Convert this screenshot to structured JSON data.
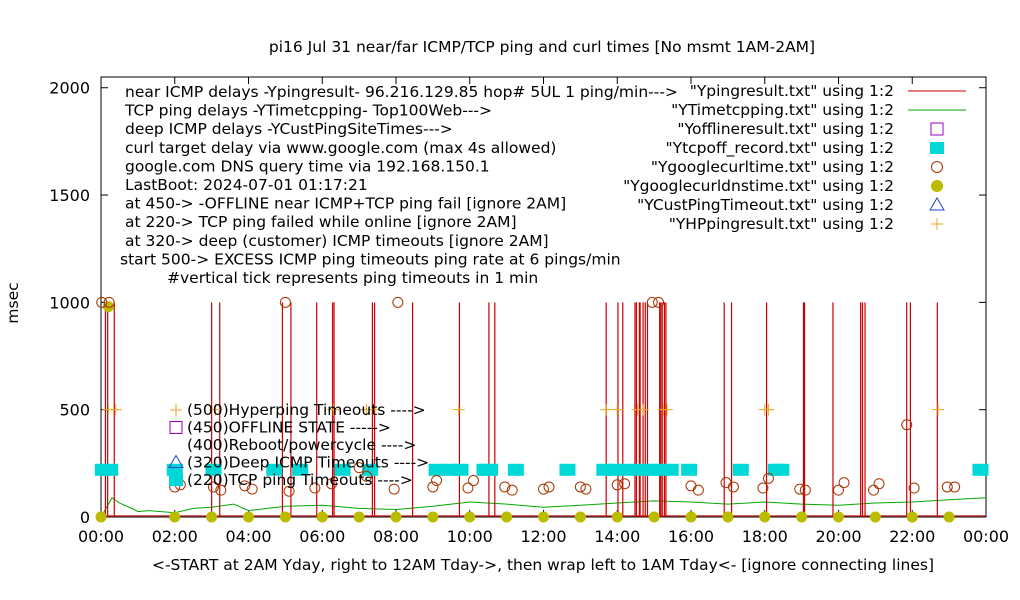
{
  "chart_data": {
    "type": "scatter",
    "title": "pi16 Jul 31  near/far ICMP/TCP ping and curl times [No msmt 1AM-2AM]",
    "ylabel": "msec",
    "xlabel": "<-START at 2AM Yday, right to 12AM Tday->, then wrap left to 1AM Tday<- [ignore connecting lines]",
    "xlim": [
      0,
      24
    ],
    "ylim": [
      0,
      2050
    ],
    "grid": false,
    "legend_position": "top-right",
    "x_ticks": [
      {
        "v": 0,
        "label": "00:00"
      },
      {
        "v": 2,
        "label": "02:00"
      },
      {
        "v": 4,
        "label": "04:00"
      },
      {
        "v": 6,
        "label": "06:00"
      },
      {
        "v": 8,
        "label": "08:00"
      },
      {
        "v": 10,
        "label": "10:00"
      },
      {
        "v": 12,
        "label": "12:00"
      },
      {
        "v": 14,
        "label": "14:00"
      },
      {
        "v": 16,
        "label": "16:00"
      },
      {
        "v": 18,
        "label": "18:00"
      },
      {
        "v": 20,
        "label": "20:00"
      },
      {
        "v": 22,
        "label": "22:00"
      },
      {
        "v": 24,
        "label": "00:00"
      }
    ],
    "y_ticks": [
      {
        "v": 0,
        "label": "0"
      },
      {
        "v": 500,
        "label": "500"
      },
      {
        "v": 1000,
        "label": "1000"
      },
      {
        "v": 1500,
        "label": "1500"
      },
      {
        "v": 2000,
        "label": "2000"
      }
    ],
    "notes": [
      "near ICMP delays -Ypingresult- 96.216.129.85 hop# 5UL 1 ping/min--->",
      "TCP ping delays -YTimetcpping- Top100Web--->",
      "deep ICMP delays -YCustPingSiteTimes--->",
      "curl target delay via www.google.com (max 4s allowed)",
      "google.com DNS query time via 192.168.150.1",
      "LastBoot: 2024-07-01 01:17:21",
      "at 450-> -OFFLINE near ICMP+TCP ping fail [ignore 2AM]",
      "at 220-> TCP ping failed while online [ignore 2AM]",
      "at 320-> deep (customer) ICMP timeouts [ignore 2AM]",
      "start 500-> EXCESS ICMP ping timeouts ping rate at 6 pings/min",
      "#vertical tick represents ping timeouts in 1 min"
    ],
    "annotations": [
      {
        "text": "(500)Hyperping Timeouts ---->",
        "y": 500
      },
      {
        "text": "(450)OFFLINE STATE ----->",
        "y": 450
      },
      {
        "text": "(400)Reboot/powercycle ---->",
        "y": 400
      },
      {
        "text": "(320)Deep ICMP Timeouts ---->",
        "y": 320
      },
      {
        "text": "(220)TCP ping Timeouts ---->",
        "y": 220
      }
    ],
    "series": [
      {
        "name": "\"Ypingresult.txt\" using 1:2",
        "style": "line",
        "color": "#cc0000",
        "spikes_x": [
          0.12,
          0.18,
          0.36,
          3.0,
          3.22,
          4.92,
          5.15,
          5.85,
          6.28,
          6.32,
          7.36,
          7.42,
          8.45,
          9.72,
          10.52,
          10.68,
          13.7,
          14.02,
          14.15,
          14.48,
          14.52,
          14.6,
          14.62,
          14.7,
          14.76,
          14.82,
          15.15,
          15.18,
          15.22,
          15.28,
          15.32,
          16.9,
          17.1,
          18.05,
          19.05,
          19.08,
          19.85,
          20.6,
          20.65,
          20.72,
          21.85,
          21.95,
          22.68
        ],
        "spike_value": 1000,
        "baseline": [
          [
            0,
            5
          ],
          [
            24,
            5
          ]
        ]
      },
      {
        "name": "\"YTimetcpping.txt\" using 1:2",
        "style": "line",
        "color": "#00aa00",
        "points": [
          [
            0,
            0
          ],
          [
            0.2,
            60
          ],
          [
            0.3,
            90
          ],
          [
            0.5,
            65
          ],
          [
            0.9,
            35
          ],
          [
            1.0,
            25
          ],
          [
            1.3,
            30
          ],
          [
            2.0,
            20
          ],
          [
            2.5,
            40
          ],
          [
            3.0,
            45
          ],
          [
            3.6,
            60
          ],
          [
            4.0,
            30
          ],
          [
            5.0,
            50
          ],
          [
            6.0,
            55
          ],
          [
            7.0,
            40
          ],
          [
            8.0,
            35
          ],
          [
            9.0,
            50
          ],
          [
            10.0,
            70
          ],
          [
            11.0,
            60
          ],
          [
            12.0,
            45
          ],
          [
            13.0,
            55
          ],
          [
            14.0,
            65
          ],
          [
            15.0,
            75
          ],
          [
            16.0,
            70
          ],
          [
            17.0,
            60
          ],
          [
            18.0,
            70
          ],
          [
            19.0,
            60
          ],
          [
            20.0,
            55
          ],
          [
            21.0,
            65
          ],
          [
            22.0,
            70
          ],
          [
            23.0,
            80
          ],
          [
            24.0,
            90
          ]
        ]
      },
      {
        "name": "\"Yofflineresult.txt\" using 1:2",
        "style": "open-square",
        "color": "#9900cc",
        "points": []
      },
      {
        "name": "\"Ytcpoff_record.txt\" using 1:2",
        "style": "filled-square",
        "color": "#00d7d7",
        "points": [
          [
            0.05,
            220
          ],
          [
            0.25,
            220
          ],
          [
            2.0,
            220
          ],
          [
            3.05,
            220
          ],
          [
            4.7,
            220
          ],
          [
            5.4,
            220
          ],
          [
            6.55,
            220
          ],
          [
            7.3,
            220
          ],
          [
            9.1,
            220
          ],
          [
            9.45,
            220
          ],
          [
            9.75,
            220
          ],
          [
            10.4,
            220
          ],
          [
            10.55,
            220
          ],
          [
            11.25,
            220
          ],
          [
            12.65,
            220
          ],
          [
            13.65,
            220
          ],
          [
            13.95,
            220
          ],
          [
            14.25,
            220
          ],
          [
            14.65,
            220
          ],
          [
            14.95,
            220
          ],
          [
            15.2,
            220
          ],
          [
            15.45,
            220
          ],
          [
            15.95,
            220
          ],
          [
            17.35,
            220
          ],
          [
            18.3,
            220
          ],
          [
            18.45,
            220
          ],
          [
            23.85,
            220
          ]
        ]
      },
      {
        "name": "\"Ygooglecurltime.txt\" using 1:2",
        "style": "open-circle",
        "color": "#aa3300",
        "points": [
          [
            0.02,
            1000
          ],
          [
            0.22,
            1000
          ],
          [
            5.0,
            1000
          ],
          [
            8.05,
            1000
          ],
          [
            14.95,
            1000
          ],
          [
            15.12,
            1000
          ],
          [
            2.0,
            140
          ],
          [
            2.15,
            150
          ],
          [
            3.05,
            140
          ],
          [
            3.25,
            125
          ],
          [
            3.9,
            145
          ],
          [
            4.1,
            130
          ],
          [
            5.1,
            120
          ],
          [
            5.8,
            135
          ],
          [
            6.25,
            155
          ],
          [
            7.0,
            230
          ],
          [
            7.2,
            190
          ],
          [
            7.95,
            130
          ],
          [
            9.0,
            140
          ],
          [
            9.1,
            170
          ],
          [
            9.95,
            135
          ],
          [
            10.1,
            170
          ],
          [
            10.95,
            140
          ],
          [
            11.15,
            125
          ],
          [
            12.0,
            130
          ],
          [
            12.15,
            140
          ],
          [
            13.0,
            140
          ],
          [
            13.15,
            130
          ],
          [
            14.0,
            150
          ],
          [
            14.2,
            155
          ],
          [
            16.0,
            145
          ],
          [
            16.2,
            125
          ],
          [
            16.95,
            160
          ],
          [
            17.15,
            140
          ],
          [
            17.95,
            135
          ],
          [
            18.1,
            180
          ],
          [
            18.95,
            130
          ],
          [
            19.1,
            125
          ],
          [
            20.0,
            125
          ],
          [
            20.15,
            160
          ],
          [
            20.95,
            125
          ],
          [
            21.1,
            155
          ],
          [
            21.85,
            430
          ],
          [
            22.05,
            135
          ],
          [
            22.95,
            140
          ],
          [
            23.15,
            140
          ]
        ]
      },
      {
        "name": "\"Ygooglecurldnstime.txt\" using 1:2",
        "style": "filled-circle",
        "color": "#bbbb00",
        "points": [
          [
            0.2,
            980
          ],
          [
            0.0,
            0
          ],
          [
            2.0,
            0
          ],
          [
            3.0,
            0
          ],
          [
            4.0,
            0
          ],
          [
            5.0,
            0
          ],
          [
            6.0,
            0
          ],
          [
            7.0,
            0
          ],
          [
            8.0,
            0
          ],
          [
            9.0,
            0
          ],
          [
            10.0,
            0
          ],
          [
            11.0,
            0
          ],
          [
            12.0,
            0
          ],
          [
            13.0,
            0
          ],
          [
            14.0,
            0
          ],
          [
            15.0,
            0
          ],
          [
            16.0,
            0
          ],
          [
            17.0,
            0
          ],
          [
            18.0,
            0
          ],
          [
            19.0,
            0
          ],
          [
            20.0,
            0
          ],
          [
            21.0,
            0
          ],
          [
            22.0,
            0
          ],
          [
            23.0,
            0
          ]
        ]
      },
      {
        "name": "\"YCustPingTimeout.txt\" using 1:2",
        "style": "open-triangle",
        "color": "#2244cc",
        "points": []
      },
      {
        "name": "\"YHPpingresult.txt\" using 1:2",
        "style": "plus",
        "color": "#e8a820",
        "points": [
          [
            0.2,
            500
          ],
          [
            0.4,
            500
          ],
          [
            3.1,
            500
          ],
          [
            6.3,
            500
          ],
          [
            7.2,
            500
          ],
          [
            7.4,
            500
          ],
          [
            9.7,
            500
          ],
          [
            13.7,
            500
          ],
          [
            14.0,
            500
          ],
          [
            14.55,
            500
          ],
          [
            14.7,
            500
          ],
          [
            15.25,
            500
          ],
          [
            15.35,
            500
          ],
          [
            18.0,
            500
          ],
          [
            18.1,
            500
          ],
          [
            22.7,
            500
          ]
        ]
      }
    ]
  }
}
